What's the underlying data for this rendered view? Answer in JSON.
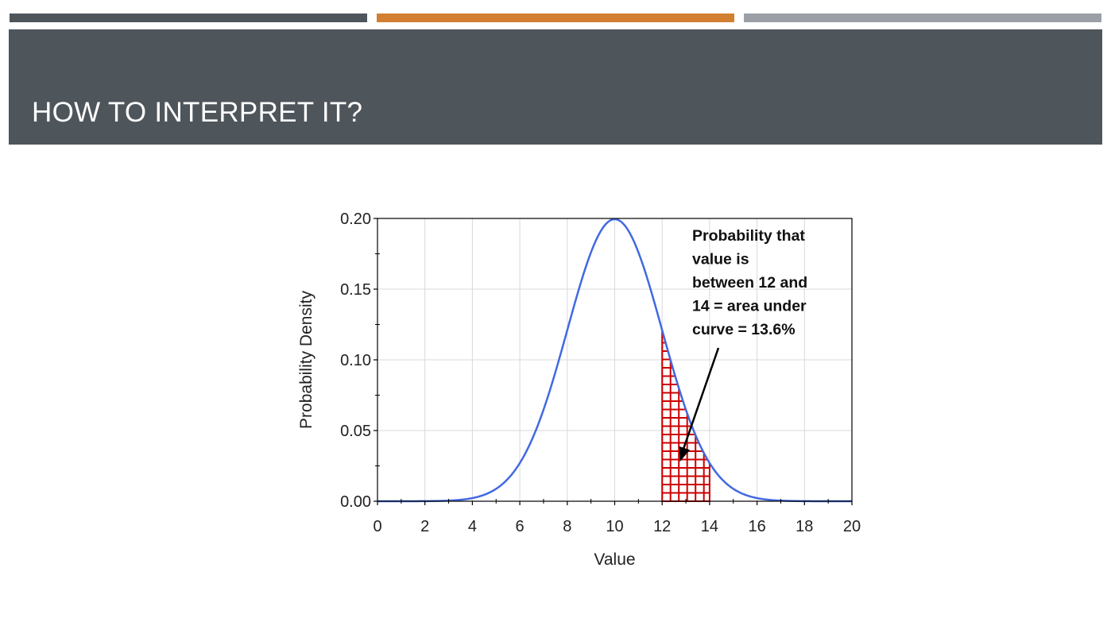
{
  "slide": {
    "title": "HOW TO INTERPRET IT?",
    "colors": {
      "header": "#4e555b",
      "accent_orange": "#d27f32",
      "accent_gray": "#9aa0a6"
    }
  },
  "chart_data": {
    "type": "line",
    "xlabel": "Value",
    "ylabel": "Probability Density",
    "xlim": [
      0,
      20
    ],
    "ylim": [
      0,
      0.2
    ],
    "x_ticks": [
      "0",
      "2",
      "4",
      "6",
      "8",
      "10",
      "12",
      "14",
      "16",
      "18",
      "20"
    ],
    "y_ticks": [
      "0.00",
      "0.05",
      "0.10",
      "0.15",
      "0.20"
    ],
    "grid": true,
    "series": [
      {
        "color": "#4169e1",
        "distribution": {
          "kind": "normal",
          "mean": 10,
          "sd": 2
        }
      }
    ],
    "shaded_region": {
      "from": 12,
      "to": 14,
      "color": "#cc0000",
      "pattern": "grid"
    },
    "annotation": {
      "lines": [
        "Probability that",
        "value is",
        "between 12 and",
        "14 = area under",
        "curve = 13.6%"
      ],
      "arrow_to": {
        "x": 12.75,
        "y": 0.028
      }
    }
  }
}
